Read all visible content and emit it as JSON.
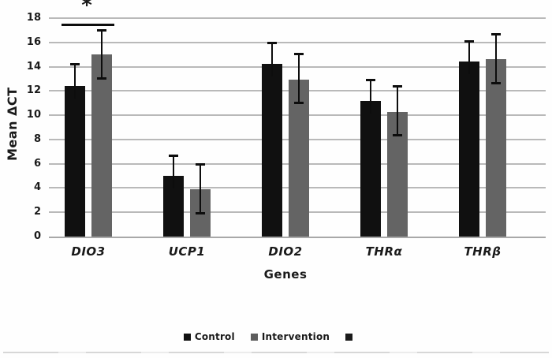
{
  "chart_data": {
    "type": "bar",
    "title": "",
    "xlabel": "Genes",
    "ylabel": "Mean ΔCT",
    "ylim": [
      0,
      18
    ],
    "yticks": [
      0,
      2,
      4,
      6,
      8,
      10,
      12,
      14,
      16,
      18
    ],
    "grid": true,
    "legend_position": "bottom-center",
    "categories": [
      "DIO3",
      "UCP1",
      "DIO2",
      "THRα",
      "THRβ"
    ],
    "series": [
      {
        "name": "Control",
        "color": "#101010",
        "values": [
          12.4,
          5.0,
          14.2,
          11.2,
          14.4
        ],
        "error_up": [
          14.2,
          6.7,
          16.0,
          12.9,
          16.1
        ],
        "error_down": [
          null,
          null,
          null,
          null,
          null
        ]
      },
      {
        "name": "Intervention",
        "color": "#646464",
        "values": [
          15.0,
          3.9,
          12.9,
          10.3,
          14.6
        ],
        "error_up": [
          17.0,
          6.0,
          15.1,
          12.4,
          16.7
        ],
        "error_down": [
          13.0,
          1.9,
          11.0,
          8.3,
          12.6
        ]
      }
    ],
    "annotations": [
      {
        "type": "significance",
        "category": "DIO3",
        "symbol": "*"
      }
    ],
    "legend": [
      {
        "label": "Control",
        "color": "#101010"
      },
      {
        "label": "Intervention",
        "color": "#5d5d5d"
      },
      {
        "label": "",
        "color": "#1a1a1a"
      }
    ],
    "colors": {
      "gridline": "#b9b9b9",
      "axis_line": "#a8a8a8",
      "error_bar": "#0d0d0d",
      "text": "#1a1a1a",
      "background": "#fefefe"
    }
  }
}
